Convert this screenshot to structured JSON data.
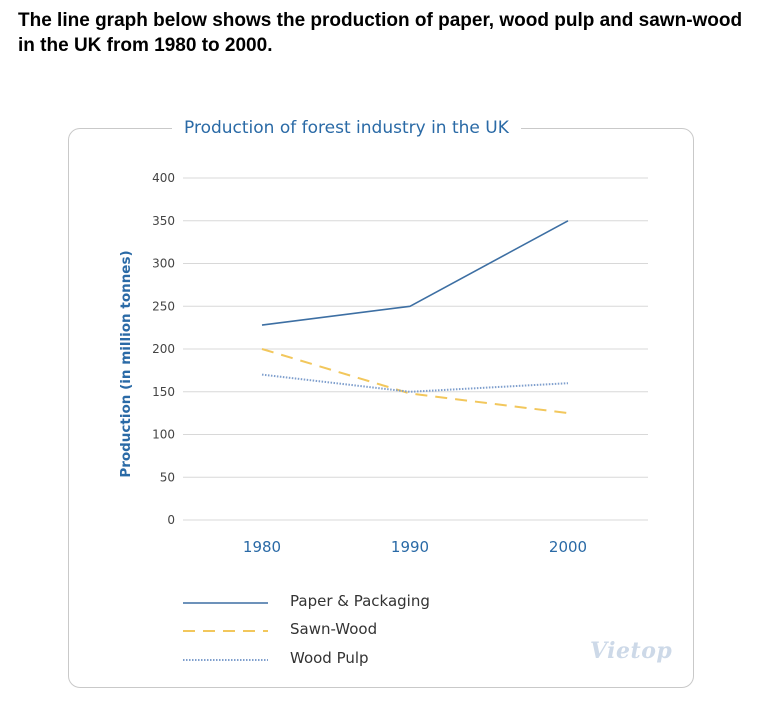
{
  "question": "The line graph below shows the production of paper, wood pulp and sawn-wood in the UK from 1980 to 2000.",
  "watermark": "Vietop",
  "colors": {
    "paper": "#3d6fa3",
    "sawn": "#f2c75c",
    "pulp": "#7f9fcd",
    "title": "#2a6aa6",
    "grid": "#d8d8d8"
  },
  "chart_data": {
    "type": "line",
    "title": "Production of forest industry in the UK",
    "xlabel": "",
    "ylabel": "Production (in million tonnes)",
    "x": [
      "1980",
      "1990",
      "2000"
    ],
    "y_ticks": [
      0,
      50,
      100,
      150,
      200,
      250,
      300,
      350,
      400
    ],
    "ylim": [
      0,
      400
    ],
    "grid": true,
    "legend_position": "bottom",
    "series": [
      {
        "name": "Paper & Packaging",
        "values": [
          228,
          250,
          350
        ],
        "style": "solid"
      },
      {
        "name": "Sawn-Wood",
        "values": [
          200,
          148,
          125
        ],
        "style": "dashed"
      },
      {
        "name": "Wood Pulp",
        "values": [
          170,
          150,
          160
        ],
        "style": "dotted"
      }
    ]
  }
}
